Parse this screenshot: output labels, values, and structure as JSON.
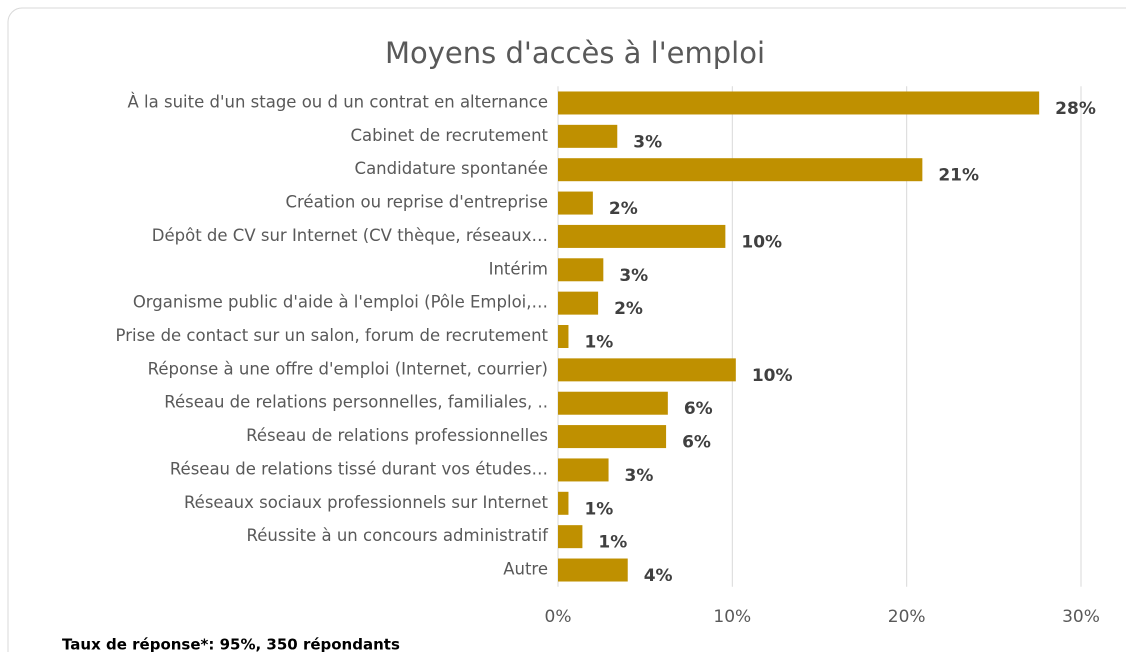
{
  "chart_data": {
    "type": "bar",
    "orientation": "horizontal",
    "title": "Moyens d'accès à l'emploi",
    "note": "Taux de réponse*: 95%, 350 répondants",
    "categories": [
      "À la suite d'un stage ou d un contrat en alternance",
      "Cabinet de recrutement",
      "Candidature spontanée",
      "Création ou reprise d'entreprise",
      "Dépôt de CV sur Internet (CV thèque, réseaux…",
      "Intérim",
      "Organisme public d'aide à l'emploi (Pôle Emploi,…",
      "Prise de contact sur un salon, forum de recrutement",
      "Réponse à une offre d'emploi (Internet, courrier)",
      "Réseau de relations personnelles, familiales, ..",
      "Réseau de relations professionnelles",
      "Réseau de relations tissé durant vos études…",
      "Réseaux sociaux professionnels sur Internet",
      "Réussite à un concours administratif",
      "Autre"
    ],
    "values": [
      27.6,
      3.4,
      20.9,
      2.0,
      9.6,
      2.6,
      2.3,
      0.6,
      10.2,
      6.3,
      6.2,
      2.9,
      0.6,
      1.4,
      4.0
    ],
    "value_labels": [
      "28%",
      "3%",
      "21%",
      "2%",
      "10%",
      "3%",
      "2%",
      "1%",
      "10%",
      "6%",
      "6%",
      "3%",
      "1%",
      "1%",
      "4%"
    ],
    "color": "#bf9000",
    "xlim": [
      0,
      30
    ],
    "xticks": [
      {
        "value": 0,
        "label": "0%"
      },
      {
        "value": 10,
        "label": "10%"
      },
      {
        "value": 20,
        "label": "20%"
      },
      {
        "value": 30,
        "label": "30%"
      }
    ],
    "grid": true
  }
}
